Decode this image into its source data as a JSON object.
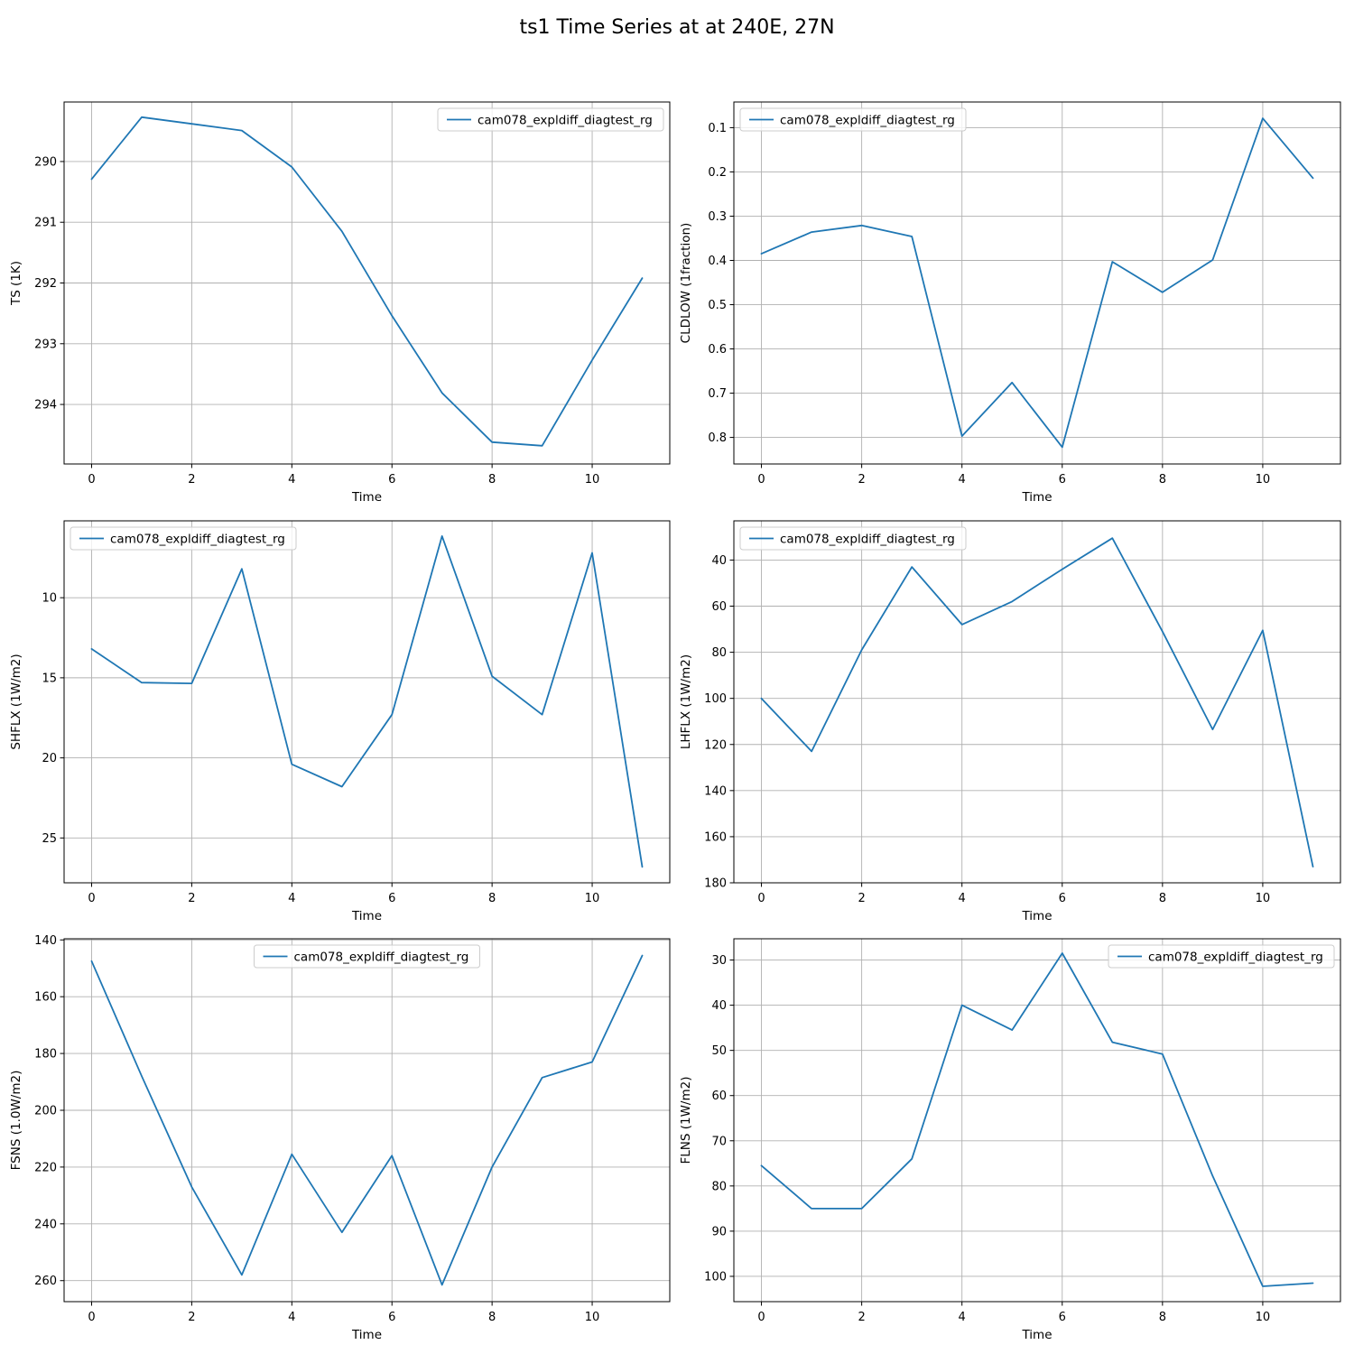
{
  "figure": {
    "title": "ts1 Time Series at at 240E, 27N"
  },
  "chart_data": [
    {
      "type": "line",
      "xlabel": "Time",
      "ylabel": "TS (1K)",
      "y_inverted": true,
      "grid": true,
      "legend_position": "upper right",
      "xlim": [
        -0.55,
        11.55
      ],
      "ylim": [
        289.02,
        294.98
      ],
      "xticks": [
        0,
        2,
        4,
        6,
        8,
        10
      ],
      "yticks": [
        290,
        291,
        292,
        293,
        294
      ],
      "x": [
        0,
        1,
        2,
        3,
        4,
        5,
        6,
        7,
        8,
        9,
        10,
        11
      ],
      "series": [
        {
          "name": "cam078_expldiff_diagtest_rg",
          "color": "#1f77b4",
          "values": [
            290.29,
            289.27,
            289.38,
            289.49,
            290.09,
            291.15,
            292.54,
            293.81,
            294.62,
            294.68,
            293.27,
            291.92
          ]
        }
      ]
    },
    {
      "type": "line",
      "xlabel": "Time",
      "ylabel": "CLDLOW (1fraction)",
      "y_inverted": true,
      "grid": true,
      "legend_position": "upper left",
      "xlim": [
        -0.55,
        11.55
      ],
      "ylim": [
        0.042,
        0.86
      ],
      "xticks": [
        0,
        2,
        4,
        6,
        8,
        10
      ],
      "yticks": [
        0.1,
        0.2,
        0.3,
        0.4,
        0.5,
        0.6,
        0.7,
        0.8
      ],
      "yticklabels": [
        "0.1",
        "0.2",
        "0.3",
        "0.4",
        "0.5",
        "0.6",
        "0.7",
        "0.8"
      ],
      "x": [
        0,
        1,
        2,
        3,
        4,
        5,
        6,
        7,
        8,
        9,
        10,
        11
      ],
      "series": [
        {
          "name": "cam078_expldiff_diagtest_rg",
          "color": "#1f77b4",
          "values": [
            0.385,
            0.336,
            0.321,
            0.346,
            0.797,
            0.676,
            0.822,
            0.403,
            0.472,
            0.399,
            0.079,
            0.214
          ]
        }
      ]
    },
    {
      "type": "line",
      "xlabel": "Time",
      "ylabel": "SHFLX (1W/m2)",
      "y_inverted": true,
      "grid": true,
      "legend_position": "upper left",
      "xlim": [
        -0.55,
        11.55
      ],
      "ylim": [
        5.2,
        27.8
      ],
      "xticks": [
        0,
        2,
        4,
        6,
        8,
        10
      ],
      "yticks": [
        10,
        15,
        20,
        25
      ],
      "x": [
        0,
        1,
        2,
        3,
        4,
        5,
        6,
        7,
        8,
        9,
        10,
        11
      ],
      "series": [
        {
          "name": "cam078_expldiff_diagtest_rg",
          "color": "#1f77b4",
          "values": [
            13.2,
            15.3,
            15.35,
            8.2,
            20.4,
            21.8,
            17.3,
            6.15,
            14.9,
            17.3,
            7.2,
            26.8
          ]
        }
      ]
    },
    {
      "type": "line",
      "xlabel": "Time",
      "ylabel": "LHFLX (1W/m2)",
      "y_inverted": true,
      "grid": true,
      "legend_position": "upper left",
      "xlim": [
        -0.55,
        11.55
      ],
      "ylim": [
        23.0,
        180.0
      ],
      "xticks": [
        0,
        2,
        4,
        6,
        8,
        10
      ],
      "yticks": [
        40,
        60,
        80,
        100,
        120,
        140,
        160,
        180
      ],
      "x": [
        0,
        1,
        2,
        3,
        4,
        5,
        6,
        7,
        8,
        9,
        10,
        11
      ],
      "series": [
        {
          "name": "cam078_expldiff_diagtest_rg",
          "color": "#1f77b4",
          "values": [
            100.0,
            123.0,
            79.0,
            43.0,
            68.0,
            58.0,
            44.0,
            30.5,
            71.0,
            113.5,
            70.5,
            173.0
          ]
        }
      ]
    },
    {
      "type": "line",
      "xlabel": "Time",
      "ylabel": "FSNS (1.0W/m2)",
      "y_inverted": true,
      "grid": true,
      "legend_position": "upper center",
      "xlim": [
        -0.55,
        11.55
      ],
      "ylim": [
        139.6,
        267.4
      ],
      "xticks": [
        0,
        2,
        4,
        6,
        8,
        10
      ],
      "yticks": [
        140,
        160,
        180,
        200,
        220,
        240,
        260
      ],
      "x": [
        0,
        1,
        2,
        3,
        4,
        5,
        6,
        7,
        8,
        9,
        10,
        11
      ],
      "series": [
        {
          "name": "cam078_expldiff_diagtest_rg",
          "color": "#1f77b4",
          "values": [
            147.5,
            188.0,
            227.0,
            258.0,
            215.5,
            243.0,
            216.0,
            261.5,
            220.0,
            188.5,
            183.0,
            145.5
          ]
        }
      ]
    },
    {
      "type": "line",
      "xlabel": "Time",
      "ylabel": "FLNS (1W/m2)",
      "y_inverted": true,
      "grid": true,
      "legend_position": "upper right",
      "xlim": [
        -0.55,
        11.55
      ],
      "ylim": [
        25.3,
        105.6
      ],
      "xticks": [
        0,
        2,
        4,
        6,
        8,
        10
      ],
      "yticks": [
        30,
        40,
        50,
        60,
        70,
        80,
        90,
        100
      ],
      "x": [
        0,
        1,
        2,
        3,
        4,
        5,
        6,
        7,
        8,
        9,
        10,
        11
      ],
      "series": [
        {
          "name": "cam078_expldiff_diagtest_rg",
          "color": "#1f77b4",
          "values": [
            75.5,
            85.0,
            85.0,
            74.0,
            40.0,
            45.5,
            28.5,
            48.2,
            50.8,
            77.8,
            102.2,
            101.5
          ]
        }
      ]
    }
  ]
}
